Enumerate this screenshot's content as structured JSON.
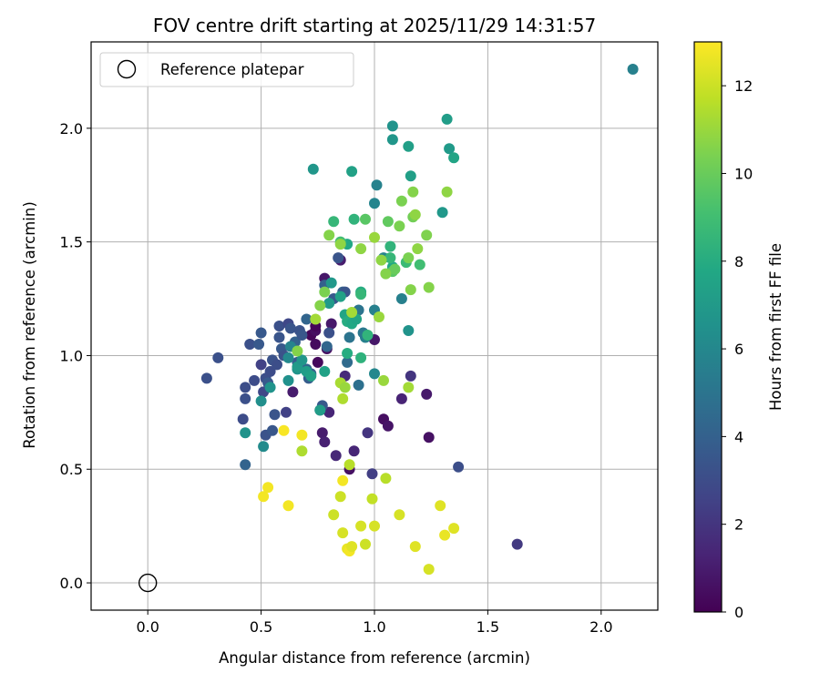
{
  "chart_data": {
    "type": "scatter",
    "title": "FOV centre drift starting at 2025/11/29 14:31:57",
    "xlabel": "Angular distance from reference (arcmin)",
    "ylabel": "Rotation from reference (arcmin)",
    "xlim": [
      -0.25,
      2.25
    ],
    "ylim": [
      -0.12,
      2.38
    ],
    "xticks": [
      0.0,
      0.5,
      1.0,
      1.5,
      2.0
    ],
    "xtick_labels": [
      "0.0",
      "0.5",
      "1.0",
      "1.5",
      "2.0"
    ],
    "yticks": [
      0.0,
      0.5,
      1.0,
      1.5,
      2.0
    ],
    "ytick_labels": [
      "0.0",
      "0.5",
      "1.0",
      "1.5",
      "2.0"
    ],
    "grid": true,
    "legend": {
      "position": "top-left",
      "label": "Reference platepar",
      "marker": "open-circle"
    },
    "colorbar": {
      "label": "Hours from first FF file",
      "min": 0,
      "max": 13,
      "ticks": [
        0,
        2,
        4,
        6,
        8,
        10,
        12
      ],
      "tick_labels": [
        "0",
        "2",
        "4",
        "6",
        "8",
        "10",
        "12"
      ],
      "colormap": "viridis"
    },
    "reference_point": {
      "x": 0.0,
      "y": 0.0
    },
    "points_columns": [
      "x_arcmin",
      "y_arcmin",
      "hours"
    ],
    "points": [
      [
        0.72,
        1.09,
        0.2
      ],
      [
        0.74,
        1.05,
        0.4
      ],
      [
        0.75,
        0.97,
        0.3
      ],
      [
        0.78,
        1.34,
        0.8
      ],
      [
        0.79,
        1.03,
        0.6
      ],
      [
        0.81,
        1.14,
        0.9
      ],
      [
        0.85,
        1.42,
        1.0
      ],
      [
        0.87,
        0.91,
        1.6
      ],
      [
        0.89,
        0.5,
        0.6
      ],
      [
        0.97,
        0.66,
        2.0
      ],
      [
        1.0,
        1.07,
        0.8
      ],
      [
        1.04,
        0.72,
        0.5
      ],
      [
        1.06,
        0.69,
        0.7
      ],
      [
        1.12,
        0.81,
        1.3
      ],
      [
        1.16,
        0.91,
        2.0
      ],
      [
        1.23,
        0.83,
        0.9
      ],
      [
        1.24,
        0.64,
        0.6
      ],
      [
        0.74,
        1.11,
        0.5
      ],
      [
        0.77,
        0.66,
        1.0
      ],
      [
        0.78,
        0.62,
        1.2
      ],
      [
        0.8,
        0.75,
        1.4
      ],
      [
        0.83,
        0.56,
        1.5
      ],
      [
        0.91,
        0.58,
        1.4
      ],
      [
        0.99,
        0.48,
        2.4
      ],
      [
        1.63,
        0.17,
        2.2
      ],
      [
        1.37,
        0.51,
        3.1
      ],
      [
        0.26,
        0.9,
        3.2
      ],
      [
        0.31,
        0.99,
        3.2
      ],
      [
        0.42,
        0.72,
        3.0
      ],
      [
        0.43,
        0.81,
        3.2
      ],
      [
        0.43,
        0.86,
        3.1
      ],
      [
        0.43,
        0.52,
        4.1
      ],
      [
        0.45,
        1.05,
        3.2
      ],
      [
        0.47,
        0.89,
        3.0
      ],
      [
        0.49,
        1.05,
        3.6
      ],
      [
        0.5,
        0.96,
        2.5
      ],
      [
        0.5,
        1.1,
        3.6
      ],
      [
        0.51,
        0.84,
        2.8
      ],
      [
        0.52,
        0.9,
        3.1
      ],
      [
        0.52,
        0.65,
        3.3
      ],
      [
        0.53,
        0.88,
        3.6
      ],
      [
        0.54,
        0.93,
        3.0
      ],
      [
        0.55,
        0.67,
        3.5
      ],
      [
        0.55,
        0.98,
        3.3
      ],
      [
        0.56,
        0.74,
        3.4
      ],
      [
        0.57,
        0.96,
        3.1
      ],
      [
        0.58,
        1.13,
        3.2
      ],
      [
        0.58,
        1.08,
        3.4
      ],
      [
        0.59,
        1.03,
        3.6
      ],
      [
        0.6,
        1.0,
        3.3
      ],
      [
        0.61,
        0.75,
        2.5
      ],
      [
        0.62,
        1.14,
        2.8
      ],
      [
        0.63,
        1.12,
        3.4
      ],
      [
        0.64,
        0.84,
        1.0
      ],
      [
        0.65,
        1.06,
        4.0
      ],
      [
        0.66,
        0.97,
        3.8
      ],
      [
        0.67,
        1.11,
        3.3
      ],
      [
        0.68,
        1.09,
        3.5
      ],
      [
        0.7,
        0.94,
        4.2
      ],
      [
        0.7,
        1.16,
        4.2
      ],
      [
        0.71,
        0.9,
        3.8
      ],
      [
        0.72,
        0.92,
        4.0
      ],
      [
        0.74,
        1.13,
        0.2
      ],
      [
        0.76,
        0.76,
        2.6
      ],
      [
        0.77,
        0.78,
        3.6
      ],
      [
        0.78,
        1.31,
        4.0
      ],
      [
        0.79,
        1.04,
        4.2
      ],
      [
        0.8,
        1.1,
        3.2
      ],
      [
        0.82,
        1.25,
        3.6
      ],
      [
        0.84,
        1.43,
        3.4
      ],
      [
        0.86,
        1.28,
        4.2
      ],
      [
        0.87,
        1.28,
        3.4
      ],
      [
        0.88,
        0.97,
        4.5
      ],
      [
        0.89,
        1.08,
        5.0
      ],
      [
        0.93,
        0.87,
        4.8
      ],
      [
        0.93,
        1.2,
        5.0
      ],
      [
        0.96,
        1.08,
        5.6
      ],
      [
        0.95,
        1.1,
        5.2
      ],
      [
        1.0,
        1.2,
        5.6
      ],
      [
        1.0,
        0.92,
        6.0
      ],
      [
        1.01,
        1.75,
        5.7
      ],
      [
        1.0,
        1.67,
        5.9
      ],
      [
        1.04,
        1.43,
        5.8
      ],
      [
        1.08,
        2.01,
        6.6
      ],
      [
        1.08,
        1.95,
        6.8
      ],
      [
        1.12,
        1.25,
        5.6
      ],
      [
        1.15,
        1.11,
        6.6
      ],
      [
        1.15,
        1.92,
        7.3
      ],
      [
        1.16,
        1.79,
        7.3
      ],
      [
        1.32,
        2.04,
        7.2
      ],
      [
        1.33,
        1.91,
        7.0
      ],
      [
        1.35,
        1.87,
        7.6
      ],
      [
        1.3,
        1.63,
        6.9
      ],
      [
        2.14,
        2.26,
        5.6
      ],
      [
        0.73,
        1.82,
        6.8
      ],
      [
        0.9,
        1.81,
        7.4
      ],
      [
        0.43,
        0.66,
        6.6
      ],
      [
        0.51,
        0.6,
        6.2
      ],
      [
        0.5,
        0.8,
        6.4
      ],
      [
        0.54,
        0.86,
        6.6
      ],
      [
        0.62,
        0.89,
        6.5
      ],
      [
        0.62,
        0.99,
        6.1
      ],
      [
        0.63,
        1.04,
        5.8
      ],
      [
        0.66,
        0.94,
        6.6
      ],
      [
        0.66,
        0.95,
        7.0
      ],
      [
        0.68,
        0.98,
        6.8
      ],
      [
        0.7,
        0.93,
        7.2
      ],
      [
        0.72,
        0.91,
        7.4
      ],
      [
        0.76,
        0.76,
        7.2
      ],
      [
        0.78,
        0.93,
        7.4
      ],
      [
        0.8,
        1.23,
        7.0
      ],
      [
        0.81,
        1.32,
        6.9
      ],
      [
        0.85,
        1.26,
        7.4
      ],
      [
        0.87,
        1.18,
        7.6
      ],
      [
        0.88,
        1.49,
        7.8
      ],
      [
        0.88,
        1.15,
        8.0
      ],
      [
        0.88,
        1.01,
        8.0
      ],
      [
        0.9,
        1.14,
        7.8
      ],
      [
        0.92,
        1.16,
        7.6
      ],
      [
        0.94,
        0.99,
        8.3
      ],
      [
        0.94,
        1.28,
        8.0
      ],
      [
        0.94,
        1.27,
        8.6
      ],
      [
        0.97,
        1.09,
        8.4
      ],
      [
        1.08,
        1.39,
        7.8
      ],
      [
        1.07,
        1.48,
        8.4
      ],
      [
        1.07,
        1.43,
        8.6
      ],
      [
        1.14,
        1.41,
        8.8
      ],
      [
        1.2,
        1.4,
        9.0
      ],
      [
        0.82,
        1.59,
        8.6
      ],
      [
        0.85,
        1.5,
        9.0
      ],
      [
        0.91,
        1.6,
        8.4
      ],
      [
        0.96,
        1.6,
        9.6
      ],
      [
        1.06,
        1.59,
        9.8
      ],
      [
        1.08,
        1.37,
        9.6
      ],
      [
        1.09,
        1.38,
        10.0
      ],
      [
        1.11,
        1.57,
        10.4
      ],
      [
        1.12,
        1.68,
        10.4
      ],
      [
        1.15,
        1.43,
        10.4
      ],
      [
        1.17,
        1.61,
        10.2
      ],
      [
        1.17,
        1.72,
        10.6
      ],
      [
        1.18,
        1.62,
        10.8
      ],
      [
        1.19,
        1.47,
        10.8
      ],
      [
        1.23,
        1.53,
        10.5
      ],
      [
        1.24,
        1.3,
        10.6
      ],
      [
        1.32,
        1.72,
        10.8
      ],
      [
        1.16,
        1.29,
        10.6
      ],
      [
        0.8,
        1.53,
        10.6
      ],
      [
        0.85,
        1.49,
        10.8
      ],
      [
        0.94,
        1.47,
        10.8
      ],
      [
        1.0,
        1.52,
        11.0
      ],
      [
        1.03,
        1.42,
        10.8
      ],
      [
        1.05,
        1.36,
        10.6
      ],
      [
        0.66,
        1.02,
        10.6
      ],
      [
        0.74,
        1.16,
        11.2
      ],
      [
        0.76,
        1.22,
        10.6
      ],
      [
        0.78,
        1.28,
        10.4
      ],
      [
        0.85,
        0.88,
        11.3
      ],
      [
        0.86,
        0.81,
        11.4
      ],
      [
        0.87,
        0.86,
        11.0
      ],
      [
        0.9,
        1.19,
        11.2
      ],
      [
        1.02,
        1.17,
        11.0
      ],
      [
        1.04,
        0.89,
        11.0
      ],
      [
        1.15,
        0.86,
        11.2
      ],
      [
        0.68,
        0.58,
        11.4
      ],
      [
        0.89,
        0.52,
        11.6
      ],
      [
        1.05,
        0.46,
        11.6
      ],
      [
        0.82,
        0.3,
        12.0
      ],
      [
        0.85,
        0.38,
        12.0
      ],
      [
        0.86,
        0.22,
        12.2
      ],
      [
        0.88,
        0.15,
        12.6
      ],
      [
        0.89,
        0.14,
        12.8
      ],
      [
        0.9,
        0.16,
        12.4
      ],
      [
        0.94,
        0.25,
        12.2
      ],
      [
        0.96,
        0.17,
        12.0
      ],
      [
        0.99,
        0.37,
        11.8
      ],
      [
        1.0,
        0.25,
        12.2
      ],
      [
        1.11,
        0.3,
        12.2
      ],
      [
        1.18,
        0.16,
        12.4
      ],
      [
        1.24,
        0.06,
        12.2
      ],
      [
        1.29,
        0.34,
        12.4
      ],
      [
        1.31,
        0.21,
        12.6
      ],
      [
        1.35,
        0.24,
        12.4
      ],
      [
        0.51,
        0.38,
        12.8
      ],
      [
        0.53,
        0.42,
        12.8
      ],
      [
        0.62,
        0.34,
        12.8
      ],
      [
        0.68,
        0.65,
        12.8
      ],
      [
        0.86,
        0.45,
        12.8
      ],
      [
        0.6,
        0.67,
        12.9
      ]
    ]
  }
}
